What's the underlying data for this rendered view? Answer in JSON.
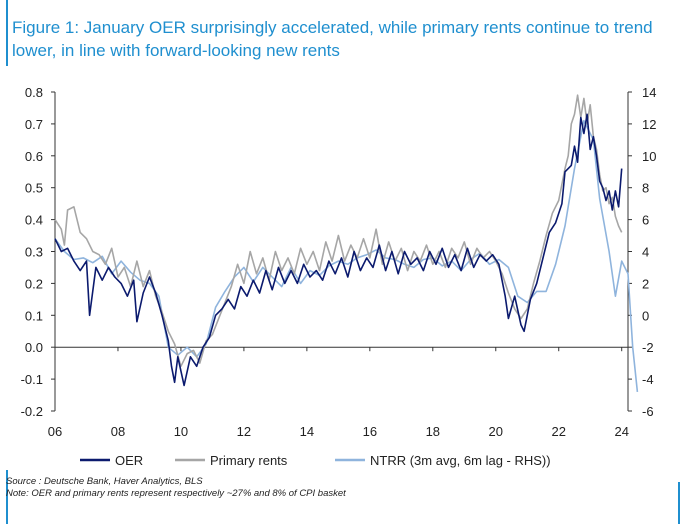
{
  "title": "Figure 1: January OER surprisingly accelerated, while primary rents continue to trend lower, in line with forward-looking new rents",
  "source_line1": "Source : Deutsche Bank, Haver Analytics, BLS",
  "source_line2": "Note: OER and primary rents represent respectively ~27% and 8% of CPI basket",
  "chart_data": {
    "type": "line",
    "x_ticks": [
      "06",
      "08",
      "10",
      "12",
      "14",
      "16",
      "18",
      "20",
      "22",
      "24"
    ],
    "x_range": [
      2006,
      2024.2
    ],
    "y_left_ticks": [
      "0.8",
      "0.7",
      "0.6",
      "0.5",
      "0.4",
      "0.3",
      "0.2",
      "0.1",
      "0.0",
      "-0.1",
      "-0.2"
    ],
    "y_left_range": [
      -0.2,
      0.8
    ],
    "y_right_ticks": [
      "14",
      "12",
      "10",
      "8",
      "6",
      "4",
      "2",
      "0",
      "-2",
      "-4",
      "-6"
    ],
    "y_right_range": [
      -6,
      14
    ],
    "colors": {
      "oer": "#0b1a6e",
      "primary_rents": "#a6a6a6",
      "ntrr": "#8fb4dd"
    },
    "series": [
      {
        "name": "OER",
        "axis": "left",
        "points": [
          [
            2006.0,
            0.34
          ],
          [
            2006.2,
            0.3
          ],
          [
            2006.4,
            0.31
          ],
          [
            2006.6,
            0.27
          ],
          [
            2006.8,
            0.24
          ],
          [
            2007.0,
            0.27
          ],
          [
            2007.1,
            0.1
          ],
          [
            2007.3,
            0.25
          ],
          [
            2007.5,
            0.21
          ],
          [
            2007.7,
            0.25
          ],
          [
            2007.9,
            0.22
          ],
          [
            2008.1,
            0.2
          ],
          [
            2008.3,
            0.16
          ],
          [
            2008.5,
            0.21
          ],
          [
            2008.6,
            0.08
          ],
          [
            2008.8,
            0.17
          ],
          [
            2009.0,
            0.22
          ],
          [
            2009.2,
            0.17
          ],
          [
            2009.4,
            0.1
          ],
          [
            2009.6,
            0.02
          ],
          [
            2009.7,
            -0.06
          ],
          [
            2009.8,
            -0.11
          ],
          [
            2009.9,
            -0.03
          ],
          [
            2010.1,
            -0.12
          ],
          [
            2010.3,
            -0.03
          ],
          [
            2010.5,
            -0.06
          ],
          [
            2010.7,
            0.0
          ],
          [
            2010.9,
            0.03
          ],
          [
            2011.1,
            0.1
          ],
          [
            2011.3,
            0.12
          ],
          [
            2011.5,
            0.15
          ],
          [
            2011.7,
            0.12
          ],
          [
            2011.9,
            0.19
          ],
          [
            2012.1,
            0.16
          ],
          [
            2012.3,
            0.21
          ],
          [
            2012.5,
            0.17
          ],
          [
            2012.7,
            0.24
          ],
          [
            2012.9,
            0.18
          ],
          [
            2013.1,
            0.25
          ],
          [
            2013.3,
            0.2
          ],
          [
            2013.5,
            0.24
          ],
          [
            2013.7,
            0.2
          ],
          [
            2013.9,
            0.26
          ],
          [
            2014.1,
            0.22
          ],
          [
            2014.3,
            0.24
          ],
          [
            2014.5,
            0.21
          ],
          [
            2014.7,
            0.27
          ],
          [
            2014.9,
            0.23
          ],
          [
            2015.1,
            0.28
          ],
          [
            2015.3,
            0.22
          ],
          [
            2015.5,
            0.3
          ],
          [
            2015.7,
            0.24
          ],
          [
            2015.9,
            0.28
          ],
          [
            2016.1,
            0.25
          ],
          [
            2016.3,
            0.32
          ],
          [
            2016.5,
            0.24
          ],
          [
            2016.7,
            0.3
          ],
          [
            2016.9,
            0.23
          ],
          [
            2017.1,
            0.3
          ],
          [
            2017.3,
            0.26
          ],
          [
            2017.5,
            0.28
          ],
          [
            2017.7,
            0.24
          ],
          [
            2017.9,
            0.3
          ],
          [
            2018.1,
            0.26
          ],
          [
            2018.3,
            0.31
          ],
          [
            2018.5,
            0.25
          ],
          [
            2018.7,
            0.29
          ],
          [
            2018.9,
            0.24
          ],
          [
            2019.1,
            0.31
          ],
          [
            2019.3,
            0.25
          ],
          [
            2019.5,
            0.29
          ],
          [
            2019.7,
            0.27
          ],
          [
            2019.9,
            0.29
          ],
          [
            2020.1,
            0.26
          ],
          [
            2020.3,
            0.16
          ],
          [
            2020.4,
            0.09
          ],
          [
            2020.6,
            0.16
          ],
          [
            2020.8,
            0.07
          ],
          [
            2020.9,
            0.05
          ],
          [
            2021.1,
            0.15
          ],
          [
            2021.3,
            0.2
          ],
          [
            2021.5,
            0.28
          ],
          [
            2021.7,
            0.36
          ],
          [
            2021.9,
            0.39
          ],
          [
            2022.1,
            0.45
          ],
          [
            2022.2,
            0.55
          ],
          [
            2022.4,
            0.57
          ],
          [
            2022.5,
            0.63
          ],
          [
            2022.6,
            0.58
          ],
          [
            2022.7,
            0.72
          ],
          [
            2022.8,
            0.67
          ],
          [
            2022.9,
            0.73
          ],
          [
            2023.0,
            0.62
          ],
          [
            2023.1,
            0.66
          ],
          [
            2023.2,
            0.6
          ],
          [
            2023.3,
            0.52
          ],
          [
            2023.4,
            0.5
          ],
          [
            2023.5,
            0.46
          ],
          [
            2023.6,
            0.49
          ],
          [
            2023.7,
            0.43
          ],
          [
            2023.8,
            0.49
          ],
          [
            2023.9,
            0.44
          ],
          [
            2024.0,
            0.56
          ]
        ]
      },
      {
        "name": "Primary rents",
        "axis": "left",
        "points": [
          [
            2006.0,
            0.4
          ],
          [
            2006.2,
            0.37
          ],
          [
            2006.3,
            0.32
          ],
          [
            2006.4,
            0.43
          ],
          [
            2006.6,
            0.44
          ],
          [
            2006.8,
            0.36
          ],
          [
            2007.0,
            0.34
          ],
          [
            2007.2,
            0.3
          ],
          [
            2007.4,
            0.29
          ],
          [
            2007.6,
            0.26
          ],
          [
            2007.8,
            0.31
          ],
          [
            2008.0,
            0.22
          ],
          [
            2008.2,
            0.25
          ],
          [
            2008.4,
            0.19
          ],
          [
            2008.6,
            0.27
          ],
          [
            2008.8,
            0.19
          ],
          [
            2009.0,
            0.24
          ],
          [
            2009.2,
            0.16
          ],
          [
            2009.4,
            0.11
          ],
          [
            2009.6,
            0.05
          ],
          [
            2009.8,
            0.01
          ],
          [
            2010.0,
            -0.06
          ],
          [
            2010.2,
            -0.02
          ],
          [
            2010.4,
            -0.01
          ],
          [
            2010.6,
            -0.05
          ],
          [
            2010.8,
            0.02
          ],
          [
            2011.0,
            0.04
          ],
          [
            2011.2,
            0.09
          ],
          [
            2011.4,
            0.14
          ],
          [
            2011.6,
            0.19
          ],
          [
            2011.8,
            0.26
          ],
          [
            2012.0,
            0.2
          ],
          [
            2012.2,
            0.3
          ],
          [
            2012.4,
            0.23
          ],
          [
            2012.6,
            0.28
          ],
          [
            2012.8,
            0.21
          ],
          [
            2013.0,
            0.3
          ],
          [
            2013.2,
            0.24
          ],
          [
            2013.4,
            0.28
          ],
          [
            2013.6,
            0.23
          ],
          [
            2013.8,
            0.31
          ],
          [
            2014.0,
            0.26
          ],
          [
            2014.2,
            0.3
          ],
          [
            2014.4,
            0.24
          ],
          [
            2014.6,
            0.33
          ],
          [
            2014.8,
            0.27
          ],
          [
            2015.0,
            0.35
          ],
          [
            2015.2,
            0.27
          ],
          [
            2015.4,
            0.32
          ],
          [
            2015.6,
            0.28
          ],
          [
            2015.8,
            0.34
          ],
          [
            2016.0,
            0.28
          ],
          [
            2016.2,
            0.37
          ],
          [
            2016.4,
            0.26
          ],
          [
            2016.6,
            0.33
          ],
          [
            2016.8,
            0.27
          ],
          [
            2017.0,
            0.31
          ],
          [
            2017.2,
            0.24
          ],
          [
            2017.4,
            0.3
          ],
          [
            2017.6,
            0.27
          ],
          [
            2017.8,
            0.32
          ],
          [
            2018.0,
            0.26
          ],
          [
            2018.2,
            0.3
          ],
          [
            2018.4,
            0.25
          ],
          [
            2018.6,
            0.31
          ],
          [
            2018.8,
            0.28
          ],
          [
            2019.0,
            0.33
          ],
          [
            2019.2,
            0.26
          ],
          [
            2019.4,
            0.31
          ],
          [
            2019.6,
            0.28
          ],
          [
            2019.8,
            0.3
          ],
          [
            2020.0,
            0.27
          ],
          [
            2020.2,
            0.23
          ],
          [
            2020.4,
            0.17
          ],
          [
            2020.6,
            0.12
          ],
          [
            2020.8,
            0.09
          ],
          [
            2021.0,
            0.12
          ],
          [
            2021.2,
            0.2
          ],
          [
            2021.4,
            0.27
          ],
          [
            2021.6,
            0.35
          ],
          [
            2021.8,
            0.42
          ],
          [
            2022.0,
            0.46
          ],
          [
            2022.2,
            0.56
          ],
          [
            2022.3,
            0.6
          ],
          [
            2022.4,
            0.7
          ],
          [
            2022.5,
            0.73
          ],
          [
            2022.6,
            0.79
          ],
          [
            2022.7,
            0.72
          ],
          [
            2022.8,
            0.78
          ],
          [
            2022.9,
            0.7
          ],
          [
            2023.0,
            0.76
          ],
          [
            2023.1,
            0.66
          ],
          [
            2023.2,
            0.62
          ],
          [
            2023.3,
            0.54
          ],
          [
            2023.4,
            0.49
          ],
          [
            2023.5,
            0.5
          ],
          [
            2023.6,
            0.45
          ],
          [
            2023.7,
            0.47
          ],
          [
            2023.8,
            0.41
          ],
          [
            2023.9,
            0.38
          ],
          [
            2024.0,
            0.36
          ]
        ]
      },
      {
        "name": "NTRR (3m avg, 6m lag - RHS))",
        "axis": "right",
        "points": [
          [
            2006.0,
            4.8
          ],
          [
            2006.3,
            4.0
          ],
          [
            2006.6,
            3.5
          ],
          [
            2006.9,
            3.6
          ],
          [
            2007.2,
            3.3
          ],
          [
            2007.5,
            3.7
          ],
          [
            2007.8,
            2.6
          ],
          [
            2008.1,
            3.4
          ],
          [
            2008.4,
            2.7
          ],
          [
            2008.7,
            2.2
          ],
          [
            2009.0,
            2.0
          ],
          [
            2009.3,
            1.2
          ],
          [
            2009.6,
            -2.0
          ],
          [
            2009.9,
            -2.5
          ],
          [
            2010.2,
            -2.0
          ],
          [
            2010.5,
            -2.6
          ],
          [
            2010.8,
            -1.8
          ],
          [
            2011.1,
            0.5
          ],
          [
            2011.4,
            1.5
          ],
          [
            2011.7,
            2.4
          ],
          [
            2012.0,
            3.0
          ],
          [
            2012.3,
            2.1
          ],
          [
            2012.6,
            3.0
          ],
          [
            2012.9,
            2.4
          ],
          [
            2013.2,
            1.8
          ],
          [
            2013.5,
            3.0
          ],
          [
            2013.8,
            2.0
          ],
          [
            2014.1,
            2.8
          ],
          [
            2014.4,
            2.5
          ],
          [
            2014.7,
            3.1
          ],
          [
            2015.0,
            3.4
          ],
          [
            2015.3,
            3.2
          ],
          [
            2015.6,
            3.6
          ],
          [
            2015.9,
            3.8
          ],
          [
            2016.2,
            4.1
          ],
          [
            2016.5,
            3.6
          ],
          [
            2016.8,
            3.5
          ],
          [
            2017.1,
            3.2
          ],
          [
            2017.4,
            3.0
          ],
          [
            2017.7,
            3.5
          ],
          [
            2018.0,
            3.6
          ],
          [
            2018.3,
            3.1
          ],
          [
            2018.6,
            3.4
          ],
          [
            2018.9,
            2.8
          ],
          [
            2019.2,
            3.5
          ],
          [
            2019.5,
            3.9
          ],
          [
            2019.8,
            3.2
          ],
          [
            2020.1,
            3.5
          ],
          [
            2020.4,
            3.0
          ],
          [
            2020.7,
            1.2
          ],
          [
            2021.0,
            0.8
          ],
          [
            2021.3,
            1.5
          ],
          [
            2021.6,
            1.5
          ],
          [
            2021.9,
            3.2
          ],
          [
            2022.2,
            5.6
          ],
          [
            2022.5,
            9.2
          ],
          [
            2022.8,
            12.2
          ],
          [
            2023.1,
            11.0
          ],
          [
            2023.3,
            7.3
          ],
          [
            2023.6,
            4.0
          ],
          [
            2023.8,
            1.2
          ],
          [
            2024.0,
            3.4
          ],
          [
            2024.2,
            2.6
          ],
          [
            2024.35,
            -2.0
          ],
          [
            2024.5,
            -4.8
          ]
        ]
      }
    ]
  }
}
